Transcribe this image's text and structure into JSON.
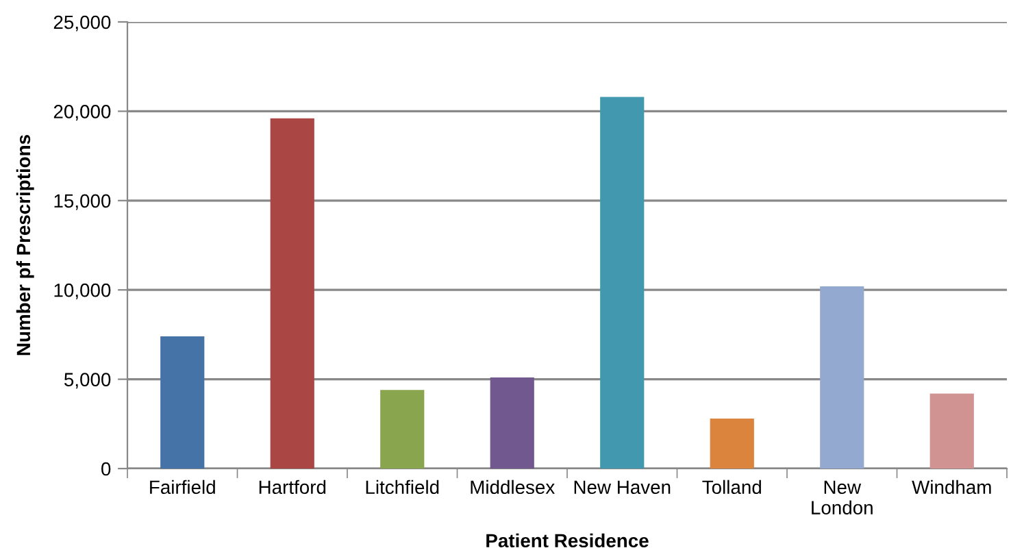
{
  "chart_data": {
    "type": "bar",
    "xlabel": "Patient Residence",
    "ylabel": "Number pf Prescriptions",
    "categories": [
      "Fairfield",
      "Hartford",
      "Litchfield",
      "Middlesex",
      "New Haven",
      "Tolland",
      "New\nLondon",
      "Windham"
    ],
    "values": [
      7400,
      19600,
      4400,
      5100,
      20800,
      2800,
      10200,
      4200
    ],
    "colors": [
      "#4572a7",
      "#aa4643",
      "#89a54e",
      "#71588f",
      "#4198af",
      "#db843d",
      "#93a9cf",
      "#d19392"
    ],
    "ylim": [
      0,
      25000
    ],
    "yticks": [
      {
        "value": 0,
        "label": "0"
      },
      {
        "value": 5000,
        "label": "5,000"
      },
      {
        "value": 10000,
        "label": "10,000"
      },
      {
        "value": 15000,
        "label": "15,000"
      },
      {
        "value": 20000,
        "label": "20,000"
      },
      {
        "value": 25000,
        "label": "25,000"
      }
    ],
    "grid": "y"
  }
}
